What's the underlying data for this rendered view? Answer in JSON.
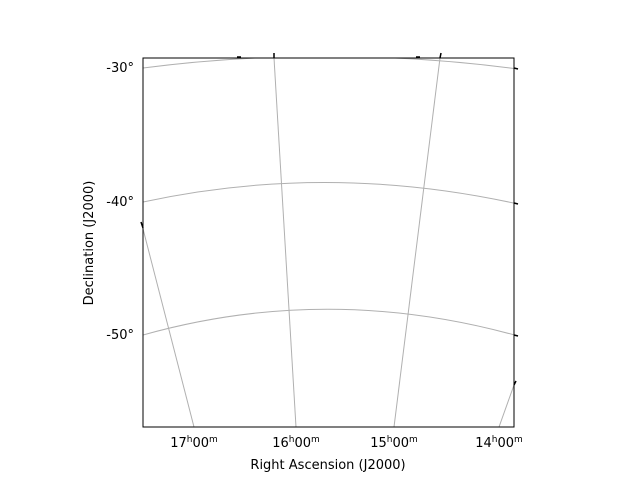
{
  "chart_data": {
    "type": "sky-projection-grid",
    "xlabel": "Right Ascension (J2000)",
    "ylabel": "Declination (J2000)",
    "x_ticks": [
      {
        "label": "17h00m",
        "h": "17",
        "m": "00"
      },
      {
        "label": "16h00m",
        "h": "16",
        "m": "00"
      },
      {
        "label": "15h00m",
        "h": "15",
        "m": "00"
      },
      {
        "label": "14h00m",
        "h": "14",
        "m": "00"
      }
    ],
    "y_ticks": [
      "-30°",
      "-40°",
      "-50°"
    ],
    "ra_gridlines_hours": [
      17,
      16,
      15,
      14
    ],
    "dec_gridlines_deg": [
      -30,
      -40,
      -50
    ],
    "grid": true,
    "grid_color": "#b0b0b0"
  }
}
